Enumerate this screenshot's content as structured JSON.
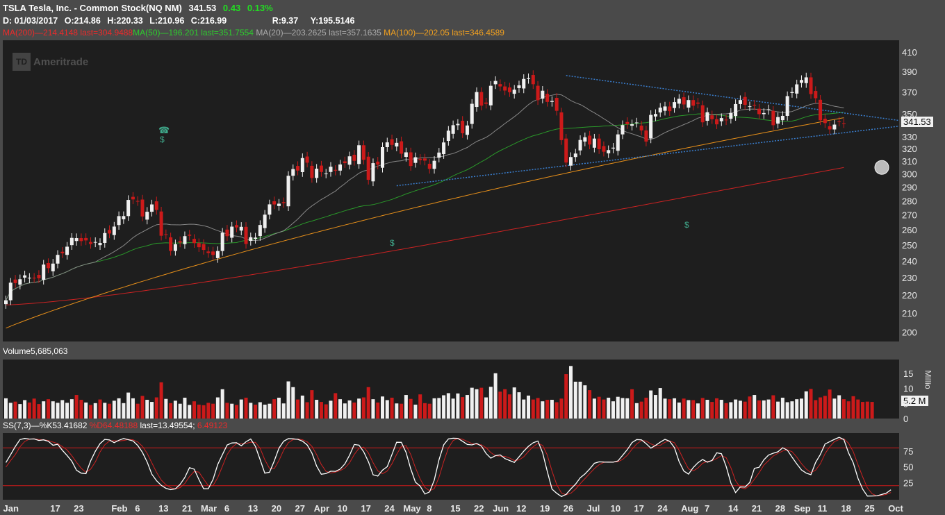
{
  "header": {
    "symbol_name": "TSLA Tesla, Inc.  - Common Stock(NQ NM)",
    "last": "341.53",
    "change": "0.43",
    "change_pct": "0.13%",
    "date_label": "D: 01/03/2017",
    "open_label": "O:214.86",
    "high_label": "H:220.33",
    "low_label": "L:210.96",
    "close_label": "C:216.99",
    "range_label": "R:9.37",
    "y_label": "Y:195.5146"
  },
  "ma_legend": {
    "ma200": "MA(200)",
    "ma200_val": "214.4148",
    "ma200_last": "last=304.9488",
    "ma50": "MA(50)",
    "ma50_val": "196.201",
    "ma50_last": "last=351.7554",
    "ma20": "MA(20)",
    "ma20_val": "203.2625",
    "ma20_last": "last=357.1635",
    "ma100": "MA(100)",
    "ma100_val": "202.05",
    "ma100_last": "last=346.4589"
  },
  "watermark": "Ameritrade",
  "watermark_logo": "TD",
  "volume_label": "Volume",
  "volume_value": "5,685,063",
  "volume_unit": "Millio",
  "volume_badge": "5.2 M",
  "price_badge": "341.53",
  "stoch": {
    "name": "SS(7,3)",
    "k_label": "%K53.41682",
    "d_label": "%D64.48188",
    "last_label": "last=13.49554;",
    "last_val": "6.49123"
  },
  "colors": {
    "up": "#f0f0f0",
    "down": "#cc1a1a",
    "ma200": "#cc2222",
    "ma100": "#e8901a",
    "ma50": "#2a9a2a",
    "ma20": "#888888",
    "trend": "#3a7fd0",
    "k": "#ffffff",
    "d": "#cc2222"
  },
  "chart_data": {
    "type": "candlestick",
    "y_ticks": [
      200,
      210,
      220,
      230,
      240,
      250,
      260,
      270,
      280,
      290,
      300,
      310,
      320,
      330,
      350,
      370,
      390,
      410
    ],
    "y_scale": "log",
    "x_labels": [
      "Jan",
      "17",
      "23",
      "Feb",
      "6",
      "13",
      "21",
      "Mar",
      "6",
      "13",
      "20",
      "27",
      "Apr",
      "10",
      "17",
      "24",
      "May",
      "8",
      "15",
      "22",
      "Jun",
      "12",
      "19",
      "26",
      "Jul",
      "10",
      "17",
      "24",
      "Aug",
      "7",
      "14",
      "21",
      "28",
      "Sep",
      "11",
      "18",
      "25",
      "Oct"
    ],
    "x_label_bars": [
      0,
      10,
      15,
      23,
      28,
      33,
      38,
      42,
      47,
      52,
      57,
      62,
      66,
      71,
      76,
      81,
      85,
      90,
      95,
      100,
      104,
      109,
      114,
      119,
      124,
      129,
      134,
      139,
      144,
      149,
      154,
      159,
      164,
      168,
      173,
      178,
      183,
      188
    ],
    "close": [
      216.99,
      226.99,
      226.75,
      229.01,
      231.28,
      229.87,
      229.73,
      229.59,
      237.75,
      235.58,
      238.36,
      243.76,
      244.73,
      248.92,
      254.61,
      254.47,
      252.51,
      252.95,
      250.63,
      251.93,
      251.33,
      257.77,
      257.48,
      262.08,
      269.2,
      269.23,
      280.6,
      280.98,
      279.76,
      268.95,
      272.23,
      277.39,
      273.51,
      255.99,
      257,
      246.23,
      250.48,
      251.57,
      255.73,
      255.99,
      251.21,
      248.59,
      246.87,
      244.9,
      243.69,
      246.17,
      258,
      255.73,
      262.05,
      261.5,
      261.92,
      250.68,
      255.01,
      254.78,
      263.16,
      270.22,
      277.45,
      277.38,
      277.92,
      278.3,
      298.52,
      303.7,
      302.54,
      312.39,
      308.71,
      296.84,
      304,
      301.44,
      300.25,
      305.52,
      302.51,
      307.31,
      308.35,
      313.79,
      310.17,
      322.83,
      311.02,
      295.46,
      308.35,
      307.19,
      321.26,
      325.22,
      323.1,
      324.81,
      315.88,
      317.01,
      306.11,
      313.06,
      310.83,
      310.35,
      303.86,
      310.22,
      316.83,
      325.14,
      335.1,
      339.85,
      341.01,
      332.89,
      339.6,
      359.01,
      370,
      357.32,
      359.01,
      375.95,
      380.66,
      375.34,
      371.4,
      369.8,
      372.24,
      376.4,
      382.61,
      383.45,
      377.49,
      362.37,
      371.24,
      360.75,
      361.61,
      352.62,
      327.09,
      308.83,
      313.22,
      316.05,
      327.22,
      329.52,
      323.41,
      328.4,
      319.57,
      317.5,
      318.83,
      320.84,
      331.94,
      339.94,
      340.73,
      340.67,
      342.22,
      335.33,
      325.89,
      348.92,
      349.75,
      355.48,
      356.56,
      352.3,
      360.58,
      363.64,
      358.4,
      362.45,
      357.28,
      359.11,
      342.36,
      351.35,
      345.14,
      340.59,
      346.11,
      344.15,
      350.75,
      358.77,
      362.45,
      358.09,
      356.71,
      357.39,
      349.59,
      350.61,
      354,
      339.86,
      346.99,
      348.05,
      366.15,
      370,
      377.34,
      381.6,
      384.18,
      368.06,
      364.19,
      344.15,
      341.68,
      336.17,
      340.36,
      342.95,
      341.53
    ],
    "series": [
      {
        "name": "MA(200)",
        "last": 304.9488
      },
      {
        "name": "MA(100)",
        "last": 346.4589
      },
      {
        "name": "MA(50)",
        "last": 351.7554
      },
      {
        "name": "MA(20)",
        "last": 357.1635
      }
    ],
    "volume_ticks": [
      0,
      5,
      10,
      15
    ],
    "volume_millions": [
      6.7,
      5.2,
      5.6,
      4.8,
      6.1,
      5.3,
      6.6,
      4.8,
      5.7,
      6.4,
      5.7,
      5.2,
      6.1,
      5.2,
      6.4,
      7.8,
      6.2,
      5.3,
      4.5,
      5.1,
      6.3,
      5.2,
      4.9,
      5.9,
      6.7,
      5.1,
      8.6,
      6.7,
      4.9,
      7.5,
      6.2,
      5.5,
      7.0,
      12.0,
      6.5,
      5.1,
      5.9,
      4.9,
      6.9,
      4.5,
      5.7,
      4.6,
      4.4,
      5.2,
      4.9,
      7.0,
      9.7,
      5.2,
      4.9,
      4.5,
      6.3,
      6.9,
      5.2,
      4.6,
      5.4,
      4.6,
      4.9,
      6.4,
      6.9,
      5.0,
      12.3,
      10.4,
      6.3,
      7.6,
      5.4,
      9.4,
      6.2,
      5.5,
      4.7,
      5.9,
      8.4,
      6.4,
      5.0,
      6.0,
      5.3,
      6.6,
      7.0,
      10.4,
      6.4,
      5.3,
      7.3,
      6.1,
      6.9,
      5.0,
      4.9,
      7.8,
      6.5,
      4.6,
      8.0,
      5.1,
      4.9,
      6.7,
      6.8,
      7.7,
      8.4,
      6.6,
      8.3,
      7.1,
      7.8,
      10.2,
      9.7,
      10.2,
      7.0,
      10.5,
      15.0,
      8.9,
      9.7,
      8.0,
      10.3,
      8.7,
      6.3,
      7.6,
      6.3,
      6.8,
      5.7,
      6.2,
      6.2,
      5.4,
      6.6,
      14.7,
      17.4,
      12.2,
      12.2,
      11.0,
      9.4,
      6.6,
      7.2,
      6.3,
      6.9,
      5.7,
      7.2,
      6.8,
      6.7,
      9.7,
      5.1,
      5.6,
      6.9,
      9.3,
      7.8,
      10.1,
      6.6,
      6.4,
      6.7,
      5.3,
      6.6,
      6.1,
      6.1,
      5.0,
      6.8,
      6.2,
      5.5,
      6.7,
      6.2,
      5.1,
      5.4,
      6.3,
      5.9,
      5.6,
      7.3,
      7.8,
      6.0,
      6.0,
      6.3,
      7.7,
      5.6,
      6.9,
      5.4,
      5.7,
      6.4,
      6.6,
      9.0,
      9.8,
      6.1,
      7.0,
      7.5,
      9.6,
      6.6,
      7.7,
      6.4,
      5.7,
      7.4,
      6.3,
      5.5,
      5.6,
      5.5
    ],
    "stoch_ticks": [
      25,
      50,
      75
    ],
    "stoch_k": [
      56.7,
      69.3,
      82.2,
      93.1,
      94.8,
      93.9,
      94.1,
      91.6,
      92.6,
      90.3,
      84.1,
      85.6,
      76.0,
      67.8,
      58.7,
      44.5,
      39.9,
      39.1,
      59.2,
      74.5,
      86.7,
      93.3,
      92.4,
      88.1,
      92.0,
      94.7,
      92.9,
      90.9,
      83.7,
      72.7,
      57.5,
      38.2,
      27.9,
      20.6,
      15.8,
      13.9,
      15.1,
      22.1,
      32.9,
      48.6,
      46.2,
      29.8,
      15.2,
      15.3,
      29.9,
      53.7,
      69.5,
      84.5,
      87.7,
      88.0,
      83.2,
      89.6,
      94.0,
      82.3,
      61.1,
      39.9,
      41.3,
      59.2,
      79.4,
      90.3,
      94.6,
      94.2,
      93.4,
      90.6,
      84.5,
      71.7,
      51.0,
      38.1,
      39.2,
      43.0,
      42.8,
      46.3,
      54.5,
      68.3,
      85.3,
      84.3,
      73.7,
      58.0,
      37.2,
      35.3,
      44.6,
      50.1,
      69.5,
      88.8,
      88.7,
      72.7,
      46.7,
      25.6,
      19.3,
      6.8,
      10.2,
      28.9,
      61.1,
      84.8,
      94.2,
      95.2,
      94.9,
      90.3,
      85.3,
      84.6,
      86.9,
      82.8,
      71.0,
      63.6,
      67.6,
      68.8,
      63.0,
      59.9,
      56.9,
      65.7,
      74.7,
      82.4,
      88.0,
      90.8,
      72.2,
      42.7,
      14.7,
      8.0,
      2.9,
      6.3,
      14.9,
      22.4,
      32.6,
      38.6,
      46.5,
      55.5,
      57.8,
      57.5,
      57.4,
      57.2,
      59.2,
      68.0,
      77.1,
      88.4,
      93.1,
      92.6,
      86.6,
      79.5,
      83.8,
      89.0,
      93.4,
      90.3,
      80.3,
      58.3,
      43.2,
      38.3,
      48.9,
      56.4,
      61.5,
      57.2,
      60.1,
      72.1,
      70.7,
      50.4,
      24.1,
      9.1,
      18.1,
      17.8,
      25.2,
      47.5,
      49.2,
      61.0,
      68.5,
      71.4,
      73.7,
      80.1,
      76.1,
      65.2,
      54.5,
      44.8,
      39.9,
      37.5,
      56.8,
      69.4,
      86.0,
      89.8,
      93.4,
      96.6,
      93.0,
      72.0,
      56.1,
      31.6,
      14.6,
      3.6,
      3.7,
      4.0,
      6.0,
      8.2,
      13.5
    ],
    "stoch_d": [
      49.5,
      59.8,
      69.4,
      81.6,
      90.0,
      93.9,
      94.3,
      93.2,
      92.7,
      91.5,
      89.0,
      86.7,
      82.0,
      76.5,
      67.5,
      57.0,
      47.7,
      41.2,
      46.1,
      57.6,
      73.5,
      84.8,
      90.8,
      91.3,
      90.8,
      91.6,
      93.2,
      92.8,
      89.2,
      82.4,
      71.3,
      56.1,
      41.2,
      28.9,
      21.4,
      16.8,
      14.9,
      17.0,
      23.4,
      34.5,
      42.6,
      41.5,
      30.4,
      20.1,
      20.1,
      33.0,
      51.0,
      69.2,
      80.6,
      86.7,
      86.3,
      86.9,
      88.9,
      88.6,
      79.1,
      61.1,
      47.4,
      46.8,
      60.0,
      76.3,
      88.1,
      93.0,
      94.1,
      92.7,
      89.5,
      82.3,
      69.1,
      53.6,
      42.8,
      40.1,
      41.7,
      44.0,
      47.9,
      56.4,
      69.4,
      79.3,
      81.1,
      72.0,
      56.3,
      43.5,
      39.0,
      43.3,
      54.7,
      69.5,
      82.3,
      83.4,
      69.4,
      48.3,
      30.5,
      17.2,
      12.1,
      15.3,
      33.4,
      58.3,
      80.0,
      91.4,
      94.8,
      93.5,
      90.2,
      86.7,
      85.6,
      84.8,
      80.2,
      72.5,
      67.4,
      66.7,
      66.5,
      63.9,
      59.9,
      60.8,
      65.8,
      74.3,
      81.7,
      87.1,
      83.7,
      68.6,
      43.2,
      21.8,
      8.5,
      5.7,
      8.0,
      14.5,
      23.3,
      31.2,
      39.2,
      46.9,
      53.3,
      56.9,
      57.6,
      57.4,
      57.9,
      61.5,
      68.1,
      77.8,
      86.2,
      91.4,
      90.8,
      86.2,
      83.3,
      84.1,
      88.7,
      90.9,
      88.0,
      76.3,
      60.6,
      46.6,
      43.5,
      47.9,
      55.6,
      58.4,
      59.6,
      63.1,
      67.6,
      64.4,
      48.4,
      27.9,
      17.1,
      15.0,
      20.4,
      30.2,
      40.6,
      52.6,
      59.6,
      67.0,
      71.2,
      75.0,
      76.6,
      73.8,
      65.3,
      54.8,
      46.4,
      40.7,
      44.7,
      54.6,
      70.8,
      81.7,
      89.8,
      93.2,
      94.3,
      87.2,
      73.7,
      53.2,
      34.1,
      16.6,
      7.3,
      3.8,
      4.6,
      6.1,
      9.2
    ]
  }
}
